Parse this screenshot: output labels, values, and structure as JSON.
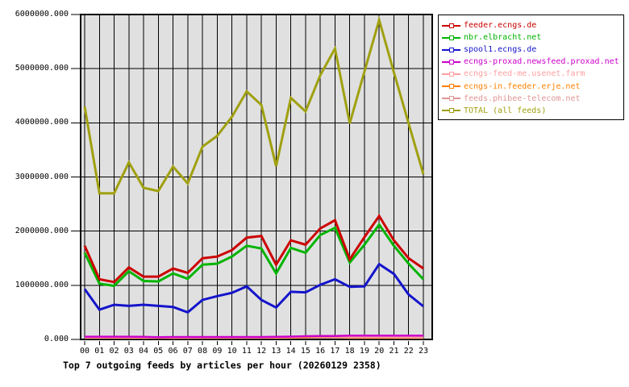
{
  "chart_data": {
    "type": "line",
    "title": "Top 7 outgoing feeds by articles per hour (20260129 2358)",
    "xlabel": "",
    "ylabel": "",
    "x": [
      "00",
      "01",
      "02",
      "03",
      "04",
      "05",
      "06",
      "07",
      "08",
      "09",
      "10",
      "11",
      "12",
      "13",
      "14",
      "15",
      "16",
      "17",
      "18",
      "19",
      "20",
      "21",
      "22",
      "23"
    ],
    "ylim": [
      0,
      6000000
    ],
    "y_ticks": [
      0,
      1000000,
      2000000,
      3000000,
      4000000,
      5000000,
      6000000
    ],
    "y_tick_labels": [
      "0.000",
      "1000000.000",
      "2000000.000",
      "3000000.000",
      "4000000.000",
      "5000000.000",
      "6000000.000"
    ],
    "grid": true,
    "legend_position": "top-right",
    "colors": {
      "plot_background": "#e0e0e0",
      "gridline": "#000000",
      "border": "#000000",
      "legend_background": "#ffffff",
      "legend_border": "#000000"
    },
    "series": [
      {
        "name": "feeder.ecngs.de",
        "color": "#cc0000",
        "values": [
          1730000,
          1110000,
          1060000,
          1330000,
          1160000,
          1160000,
          1310000,
          1230000,
          1500000,
          1530000,
          1650000,
          1880000,
          1910000,
          1380000,
          1830000,
          1750000,
          2050000,
          2200000,
          1480000,
          1890000,
          2280000,
          1830000,
          1500000,
          1310000
        ]
      },
      {
        "name": "nbr.elbracht.net",
        "color": "#00b400",
        "values": [
          1600000,
          1030000,
          990000,
          1260000,
          1080000,
          1070000,
          1220000,
          1120000,
          1380000,
          1400000,
          1530000,
          1730000,
          1680000,
          1220000,
          1690000,
          1600000,
          1930000,
          2060000,
          1420000,
          1750000,
          2120000,
          1730000,
          1400000,
          1110000
        ]
      },
      {
        "name": "spool1.ecngs.de",
        "color": "#1414cc",
        "values": [
          930000,
          550000,
          640000,
          620000,
          640000,
          620000,
          600000,
          500000,
          730000,
          800000,
          860000,
          980000,
          730000,
          590000,
          880000,
          870000,
          1010000,
          1110000,
          970000,
          980000,
          1390000,
          1210000,
          830000,
          610000
        ]
      },
      {
        "name": "ecngs-proxad.newsfeed.proxad.net",
        "color": "#cc00cc",
        "values": [
          50000,
          50000,
          50000,
          50000,
          48000,
          40000,
          45000,
          45000,
          45000,
          45000,
          45000,
          45000,
          45000,
          48000,
          52000,
          60000,
          62000,
          62000,
          70000,
          70000,
          72000,
          72000,
          72000,
          70000
        ]
      },
      {
        "name": "ecngs-feed-me.usenet.farm",
        "color": "#ff9f9f",
        "values": [
          36000,
          36000,
          35000,
          35000,
          34000,
          33000,
          34000,
          34000,
          35000,
          35000,
          36000,
          36000,
          36000,
          37000,
          42000,
          58000,
          60000,
          55000,
          42000,
          40000,
          40000,
          38000,
          37000,
          36000
        ]
      },
      {
        "name": "ecngs-in.feeder.erje.net",
        "color": "#ff8000",
        "values": [
          30000,
          30000,
          30000,
          29000,
          29000,
          28000,
          29000,
          29000,
          30000,
          30000,
          30000,
          31000,
          31000,
          31000,
          33000,
          45000,
          55000,
          52000,
          35000,
          33000,
          33000,
          32000,
          31000,
          30000
        ]
      },
      {
        "name": "feeds.phibee-telecom.net",
        "color": "#e09595",
        "values": [
          32000,
          32000,
          31000,
          31000,
          36000,
          38000,
          30000,
          30000,
          30000,
          30000,
          30000,
          30000,
          30000,
          30000,
          30000,
          32000,
          32000,
          32000,
          28000,
          28000,
          28000,
          28000,
          28000,
          28000
        ]
      },
      {
        "name": "TOTAL (all feeds)",
        "color": "#a0a010",
        "values": [
          4300000,
          2700000,
          2700000,
          3270000,
          2800000,
          2740000,
          3190000,
          2880000,
          3560000,
          3760000,
          4110000,
          4580000,
          4330000,
          3200000,
          4460000,
          4210000,
          4880000,
          5370000,
          3990000,
          4950000,
          5900000,
          4930000,
          3990000,
          3050000
        ]
      }
    ]
  }
}
